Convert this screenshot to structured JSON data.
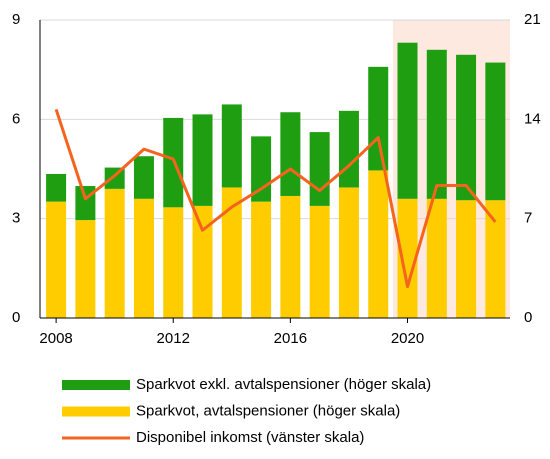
{
  "chart_data": {
    "type": "bar_line",
    "x": [
      2008,
      2009,
      2010,
      2011,
      2012,
      2013,
      2014,
      2015,
      2016,
      2017,
      2018,
      2019,
      2020,
      2021,
      2022,
      2023
    ],
    "xlim": [
      2007.45,
      2023.5
    ],
    "xticks": [
      2008,
      2012,
      2016,
      2020
    ],
    "ylim": [
      0,
      9
    ],
    "yticks": [
      0,
      3,
      6,
      9
    ],
    "y2lim": [
      0,
      21
    ],
    "y2ticks": [
      0,
      7,
      14,
      21
    ],
    "grid": true,
    "shaded_xlim": [
      2019.5,
      2023.5
    ],
    "shade_color": "#fde9df",
    "series": [
      {
        "name": "Sparkvot exkl. avtalspensioner (höger skala)",
        "color": "#1f9e12",
        "axis": "y2",
        "kind": "bar",
        "values": [
          1.95,
          2.4,
          1.5,
          3.0,
          6.3,
          6.45,
          5.85,
          4.6,
          5.9,
          5.2,
          5.4,
          7.3,
          11.0,
          10.5,
          10.25,
          9.7
        ]
      },
      {
        "name": "Sparkvot, avtalspensioner (höger skala)",
        "color": "#ffcc00",
        "axis": "y2",
        "kind": "bar",
        "values": [
          8.2,
          6.9,
          9.1,
          8.4,
          7.8,
          7.9,
          9.2,
          8.2,
          8.6,
          7.9,
          9.2,
          10.4,
          8.4,
          8.4,
          8.3,
          8.3
        ]
      },
      {
        "name": "Disponibel inkomst (vänster skala)",
        "color": "#f5641e",
        "axis": "y",
        "kind": "line",
        "values": [
          6.3,
          3.6,
          4.3,
          5.1,
          4.8,
          2.65,
          3.35,
          3.9,
          4.5,
          3.85,
          4.6,
          5.45,
          0.95,
          4.0,
          4.0,
          2.9
        ]
      }
    ]
  }
}
